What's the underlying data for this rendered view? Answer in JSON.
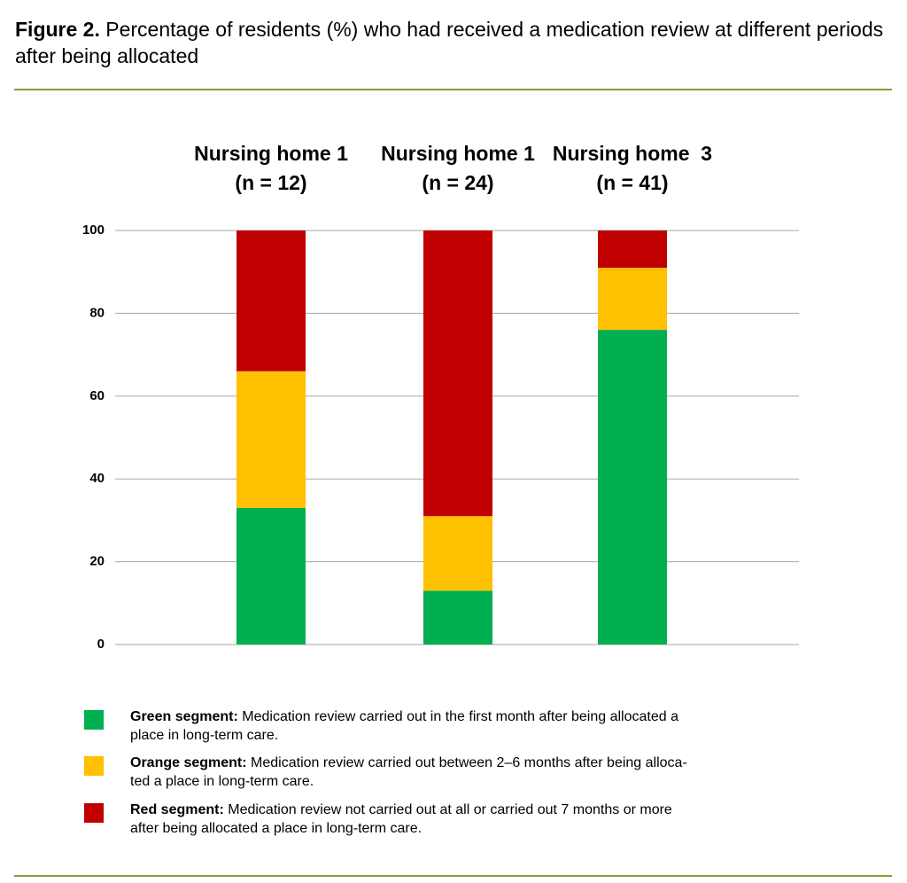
{
  "chart_data": {
    "type": "stacked_bar",
    "title_label": "Figure 2.",
    "title": "Percentage of residents (%) who had received a medication review at different periods after being allocated",
    "categories": [
      "Nursing home 1\n(n = 12)",
      "Nursing home 1\n(n = 24)",
      "Nursing home  3\n(n = 41)"
    ],
    "series": [
      {
        "name": "Green segment:",
        "description": "Medication review carried out in the first month after being allocated a\nplace in long-term care.",
        "color": "#00b050",
        "values": [
          33,
          13,
          76
        ]
      },
      {
        "name": "Orange segment:",
        "description": "Medication review carried out between 2–6 months after being alloca-\nted a place in long-term care.",
        "color": "#ffc000",
        "values": [
          33,
          18,
          15
        ]
      },
      {
        "name": "Red segment:",
        "description": "Medication review not carried out at all or carried out 7 months or more\nafter being allocated a place in long-term care.",
        "color": "#c00000",
        "values": [
          34,
          69,
          9
        ]
      }
    ],
    "ylim": [
      0,
      100
    ],
    "yticks": [
      0,
      20,
      40,
      60,
      80,
      100
    ],
    "grid": true
  }
}
